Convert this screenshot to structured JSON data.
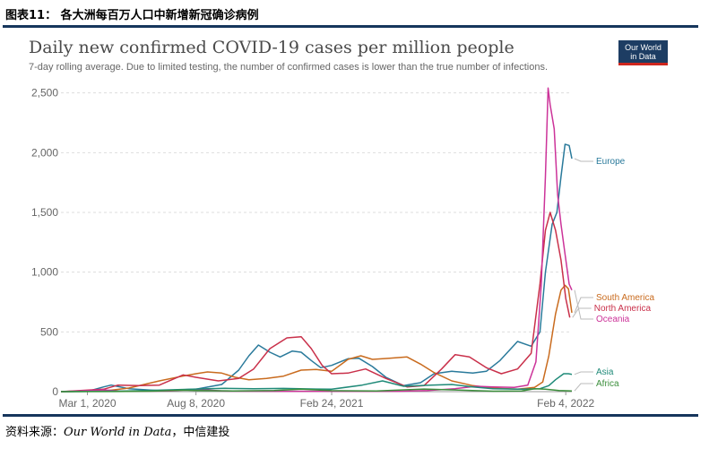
{
  "figure_caption": "图表11： 各大洲每百万人口中新增新冠确诊病例",
  "source": {
    "prefix": "资料来源：",
    "italic": "Our World in Data",
    "suffix": "，中信建投"
  },
  "logo": {
    "line1": "Our World",
    "line2": "in Data"
  },
  "colors": {
    "Europe": "#2a7a9b",
    "South America": "#c96b1e",
    "North America": "#c9304a",
    "Oceania": "#cc3399",
    "Asia": "#1f8a78",
    "Africa": "#3c8f3c"
  },
  "chart_data": {
    "type": "line",
    "title": "Daily new confirmed COVID-19 cases per million people",
    "subtitle": "7-day rolling average. Due to limited testing, the number of confirmed cases is lower than the true number of infections.",
    "x_ticks": [
      "Mar 1, 2020",
      "Aug 8, 2020",
      "Feb 24, 2021",
      "Feb 4, 2022"
    ],
    "y_ticks": [
      0,
      500,
      1000,
      1500,
      2000,
      2500
    ],
    "y_tick_labels": [
      "0",
      "500",
      "1,000",
      "1,500",
      "2,000",
      "2,500"
    ],
    "xlim": [
      "2020-01-22",
      "2022-02-13"
    ],
    "ylim": [
      0,
      2550
    ],
    "grid": "horizontal-dashed",
    "series": [
      {
        "name": "Europe",
        "points": [
          [
            "2020-01-22",
            0
          ],
          [
            "2020-03-01",
            2
          ],
          [
            "2020-03-25",
            40
          ],
          [
            "2020-04-05",
            55
          ],
          [
            "2020-05-01",
            25
          ],
          [
            "2020-06-15",
            8
          ],
          [
            "2020-08-08",
            20
          ],
          [
            "2020-09-15",
            60
          ],
          [
            "2020-10-10",
            180
          ],
          [
            "2020-10-25",
            300
          ],
          [
            "2020-11-08",
            390
          ],
          [
            "2020-11-25",
            330
          ],
          [
            "2020-12-10",
            290
          ],
          [
            "2020-12-28",
            340
          ],
          [
            "2021-01-10",
            330
          ],
          [
            "2021-01-25",
            260
          ],
          [
            "2021-02-08",
            200
          ],
          [
            "2021-02-24",
            220
          ],
          [
            "2021-03-20",
            275
          ],
          [
            "2021-04-05",
            280
          ],
          [
            "2021-04-25",
            210
          ],
          [
            "2021-05-15",
            120
          ],
          [
            "2021-06-10",
            50
          ],
          [
            "2021-07-05",
            75
          ],
          [
            "2021-07-25",
            150
          ],
          [
            "2021-08-20",
            170
          ],
          [
            "2021-09-20",
            155
          ],
          [
            "2021-10-10",
            170
          ],
          [
            "2021-10-30",
            260
          ],
          [
            "2021-11-25",
            420
          ],
          [
            "2021-12-15",
            380
          ],
          [
            "2021-12-28",
            500
          ],
          [
            "2022-01-05",
            1000
          ],
          [
            "2022-01-15",
            1400
          ],
          [
            "2022-01-22",
            1500
          ],
          [
            "2022-01-28",
            1800
          ],
          [
            "2022-02-03",
            2070
          ],
          [
            "2022-02-09",
            2060
          ],
          [
            "2022-02-13",
            1950
          ]
        ]
      },
      {
        "name": "South America",
        "points": [
          [
            "2020-01-22",
            0
          ],
          [
            "2020-03-25",
            5
          ],
          [
            "2020-05-01",
            30
          ],
          [
            "2020-06-15",
            90
          ],
          [
            "2020-07-15",
            125
          ],
          [
            "2020-08-08",
            150
          ],
          [
            "2020-08-25",
            165
          ],
          [
            "2020-09-15",
            155
          ],
          [
            "2020-10-05",
            120
          ],
          [
            "2020-10-25",
            100
          ],
          [
            "2020-11-20",
            110
          ],
          [
            "2020-12-15",
            130
          ],
          [
            "2021-01-10",
            180
          ],
          [
            "2021-02-01",
            185
          ],
          [
            "2021-02-24",
            170
          ],
          [
            "2021-03-20",
            270
          ],
          [
            "2021-04-08",
            300
          ],
          [
            "2021-04-25",
            270
          ],
          [
            "2021-05-20",
            280
          ],
          [
            "2021-06-15",
            290
          ],
          [
            "2021-07-05",
            230
          ],
          [
            "2021-07-25",
            160
          ],
          [
            "2021-08-20",
            90
          ],
          [
            "2021-09-20",
            50
          ],
          [
            "2021-10-20",
            30
          ],
          [
            "2021-11-25",
            20
          ],
          [
            "2021-12-20",
            35
          ],
          [
            "2022-01-01",
            80
          ],
          [
            "2022-01-10",
            300
          ],
          [
            "2022-01-20",
            650
          ],
          [
            "2022-01-28",
            850
          ],
          [
            "2022-02-03",
            890
          ],
          [
            "2022-02-08",
            860
          ],
          [
            "2022-02-13",
            660
          ]
        ]
      },
      {
        "name": "North America",
        "points": [
          [
            "2020-01-22",
            0
          ],
          [
            "2020-03-25",
            20
          ],
          [
            "2020-04-15",
            55
          ],
          [
            "2020-05-15",
            50
          ],
          [
            "2020-06-15",
            55
          ],
          [
            "2020-07-20",
            140
          ],
          [
            "2020-08-08",
            120
          ],
          [
            "2020-09-10",
            90
          ],
          [
            "2020-10-10",
            110
          ],
          [
            "2020-11-01",
            190
          ],
          [
            "2020-11-25",
            360
          ],
          [
            "2020-12-20",
            450
          ],
          [
            "2021-01-10",
            460
          ],
          [
            "2021-01-25",
            360
          ],
          [
            "2021-02-10",
            220
          ],
          [
            "2021-02-24",
            150
          ],
          [
            "2021-03-20",
            155
          ],
          [
            "2021-04-15",
            190
          ],
          [
            "2021-05-15",
            110
          ],
          [
            "2021-06-15",
            40
          ],
          [
            "2021-07-10",
            50
          ],
          [
            "2021-08-05",
            190
          ],
          [
            "2021-08-25",
            310
          ],
          [
            "2021-09-15",
            290
          ],
          [
            "2021-10-10",
            200
          ],
          [
            "2021-11-01",
            150
          ],
          [
            "2021-11-25",
            190
          ],
          [
            "2021-12-15",
            320
          ],
          [
            "2021-12-28",
            900
          ],
          [
            "2022-01-05",
            1350
          ],
          [
            "2022-01-12",
            1500
          ],
          [
            "2022-01-20",
            1350
          ],
          [
            "2022-01-28",
            1100
          ],
          [
            "2022-02-04",
            780
          ],
          [
            "2022-02-10",
            620
          ]
        ]
      },
      {
        "name": "Oceania",
        "points": [
          [
            "2020-01-22",
            0
          ],
          [
            "2020-03-25",
            15
          ],
          [
            "2020-04-20",
            3
          ],
          [
            "2020-07-01",
            5
          ],
          [
            "2020-08-08",
            20
          ],
          [
            "2020-09-15",
            5
          ],
          [
            "2020-12-01",
            3
          ],
          [
            "2021-02-24",
            3
          ],
          [
            "2021-06-01",
            3
          ],
          [
            "2021-07-15",
            10
          ],
          [
            "2021-08-25",
            25
          ],
          [
            "2021-09-25",
            45
          ],
          [
            "2021-10-20",
            40
          ],
          [
            "2021-11-20",
            35
          ],
          [
            "2021-12-10",
            55
          ],
          [
            "2021-12-22",
            250
          ],
          [
            "2021-12-30",
            900
          ],
          [
            "2022-01-05",
            1800
          ],
          [
            "2022-01-09",
            2540
          ],
          [
            "2022-01-12",
            2400
          ],
          [
            "2022-01-18",
            2200
          ],
          [
            "2022-01-23",
            1650
          ],
          [
            "2022-01-28",
            1400
          ],
          [
            "2022-02-03",
            1150
          ],
          [
            "2022-02-09",
            900
          ],
          [
            "2022-02-13",
            850
          ]
        ]
      },
      {
        "name": "Asia",
        "points": [
          [
            "2020-01-22",
            0
          ],
          [
            "2020-03-25",
            3
          ],
          [
            "2020-05-01",
            6
          ],
          [
            "2020-07-01",
            15
          ],
          [
            "2020-08-08",
            22
          ],
          [
            "2020-09-20",
            28
          ],
          [
            "2020-11-01",
            24
          ],
          [
            "2020-12-15",
            27
          ],
          [
            "2021-02-01",
            22
          ],
          [
            "2021-02-24",
            20
          ],
          [
            "2021-04-10",
            55
          ],
          [
            "2021-05-10",
            90
          ],
          [
            "2021-06-10",
            45
          ],
          [
            "2021-07-20",
            55
          ],
          [
            "2021-08-20",
            60
          ],
          [
            "2021-09-20",
            40
          ],
          [
            "2021-10-20",
            25
          ],
          [
            "2021-12-01",
            20
          ],
          [
            "2021-12-28",
            25
          ],
          [
            "2022-01-10",
            50
          ],
          [
            "2022-01-20",
            100
          ],
          [
            "2022-02-01",
            150
          ],
          [
            "2022-02-08",
            150
          ],
          [
            "2022-02-13",
            145
          ]
        ]
      },
      {
        "name": "Africa",
        "points": [
          [
            "2020-01-22",
            0
          ],
          [
            "2020-04-01",
            1
          ],
          [
            "2020-06-01",
            4
          ],
          [
            "2020-07-20",
            12
          ],
          [
            "2020-08-08",
            10
          ],
          [
            "2020-10-01",
            6
          ],
          [
            "2020-12-01",
            10
          ],
          [
            "2021-01-10",
            20
          ],
          [
            "2021-02-24",
            8
          ],
          [
            "2021-05-01",
            6
          ],
          [
            "2021-07-10",
            22
          ],
          [
            "2021-08-20",
            15
          ],
          [
            "2021-10-20",
            4
          ],
          [
            "2021-12-01",
            5
          ],
          [
            "2021-12-20",
            25
          ],
          [
            "2022-01-05",
            20
          ],
          [
            "2022-01-25",
            10
          ],
          [
            "2022-02-13",
            6
          ]
        ]
      }
    ],
    "labels": [
      {
        "series": "Europe",
        "text": "Europe"
      },
      {
        "series": "South America",
        "text": "South America"
      },
      {
        "series": "North America",
        "text": "North America"
      },
      {
        "series": "Oceania",
        "text": "Oceania"
      },
      {
        "series": "Asia",
        "text": "Asia"
      },
      {
        "series": "Africa",
        "text": "Africa"
      }
    ]
  }
}
